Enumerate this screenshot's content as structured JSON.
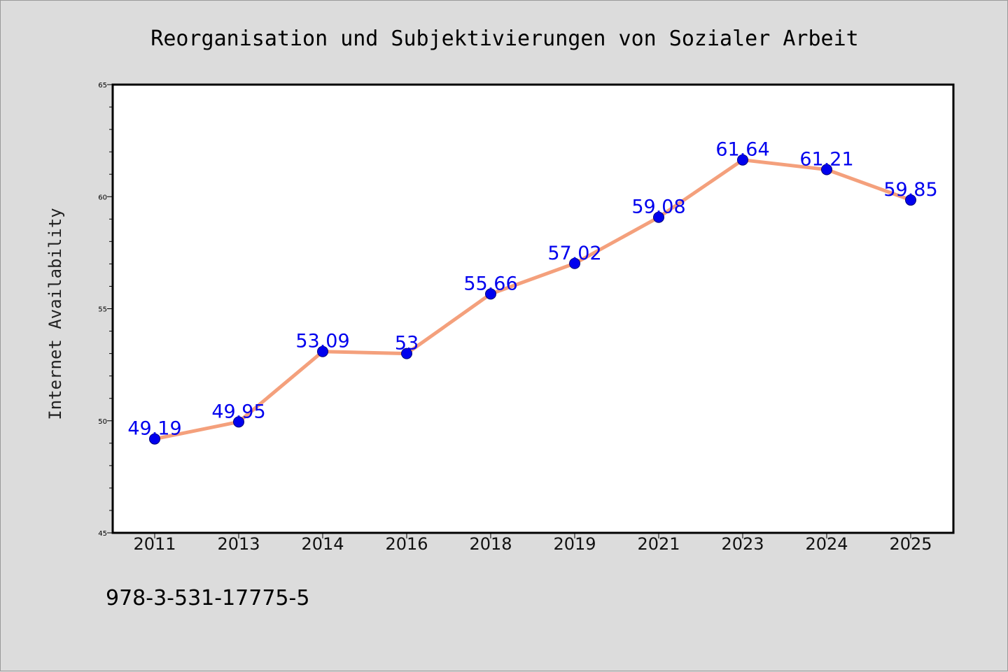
{
  "chart_data": {
    "type": "line",
    "title": "Reorganisation und Subjektivierungen von Sozialer Arbeit",
    "xlabel": "",
    "ylabel": "Internet Availability",
    "categories": [
      "2011",
      "2013",
      "2014",
      "2016",
      "2018",
      "2019",
      "2021",
      "2023",
      "2024",
      "2025"
    ],
    "series": [
      {
        "values": [
          49.19,
          49.95,
          53.09,
          53,
          55.66,
          57.02,
          59.08,
          61.64,
          61.21,
          59.85
        ],
        "labels": [
          "49.19",
          "49.95",
          "53.09",
          "53",
          "55.66",
          "57.02",
          "59.08",
          "61.64",
          "61.21",
          "59.85"
        ]
      }
    ],
    "ylim": [
      45,
      65
    ],
    "yticks": [
      "45",
      "50",
      "55",
      "60",
      "65"
    ],
    "grid": false,
    "legend": "none",
    "colors": {
      "line": "#f4a07c",
      "marker": "#0000ee",
      "data_label": "#0000ee",
      "background": "#dcdcdc",
      "plot_background": "#ffffff"
    }
  },
  "footer": {
    "isbn": "978-3-531-17775-5"
  }
}
